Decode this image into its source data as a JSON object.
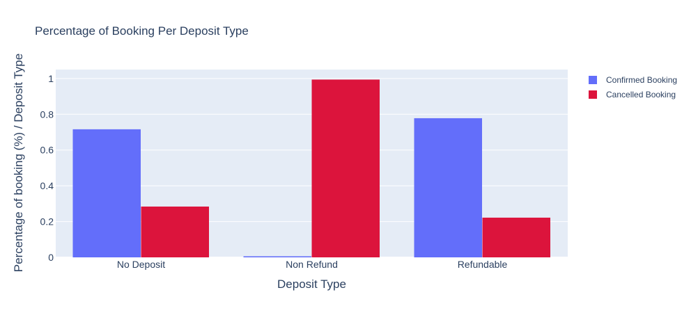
{
  "chart_data": {
    "type": "bar",
    "title": "Percentage of Booking Per Deposit Type",
    "xlabel": "Deposit Type",
    "ylabel": "Percentage of booking (%) / Deposit Type",
    "categories": [
      "No Deposit",
      "Non Refund",
      "Refundable"
    ],
    "series": [
      {
        "name": "Confirmed Booking",
        "color": "#636efa",
        "values": [
          0.716,
          0.006,
          0.778
        ]
      },
      {
        "name": "Cancelled Booking",
        "color": "#dc143c",
        "values": [
          0.284,
          0.994,
          0.222
        ]
      }
    ],
    "ylim": [
      0,
      1.05
    ],
    "yticks": [
      0,
      0.2,
      0.4,
      0.6,
      0.8,
      1
    ],
    "ytick_labels": [
      "0",
      "0.2",
      "0.4",
      "0.6",
      "0.8",
      "1"
    ],
    "grid": true,
    "legend_position": "top-right",
    "plot_background": "#e5ecf6",
    "font_color": "#2a3f5f"
  }
}
